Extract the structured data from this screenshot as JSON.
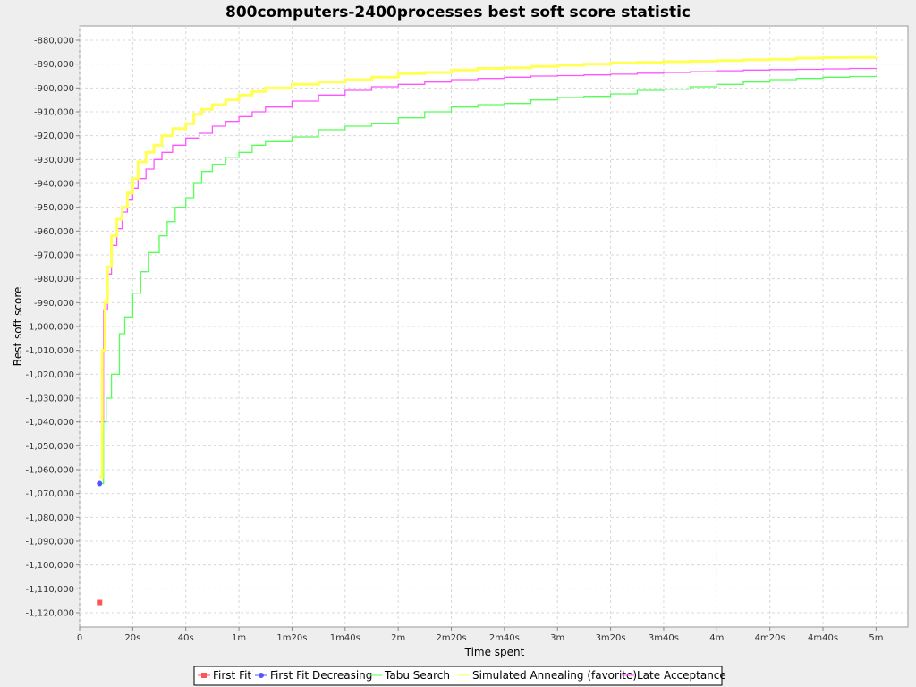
{
  "chart_data": {
    "type": "line",
    "title": "800computers-2400processes best soft score statistic",
    "xlabel": "Time spent",
    "ylabel": "Best soft score",
    "xlim": [
      0,
      312
    ],
    "ylim": [
      -1126000,
      -874000
    ],
    "x_ticks": [
      {
        "value": 0,
        "label": "0"
      },
      {
        "value": 20,
        "label": "20s"
      },
      {
        "value": 40,
        "label": "40s"
      },
      {
        "value": 60,
        "label": "1m"
      },
      {
        "value": 80,
        "label": "1m20s"
      },
      {
        "value": 100,
        "label": "1m40s"
      },
      {
        "value": 120,
        "label": "2m"
      },
      {
        "value": 140,
        "label": "2m20s"
      },
      {
        "value": 160,
        "label": "2m40s"
      },
      {
        "value": 180,
        "label": "3m"
      },
      {
        "value": 200,
        "label": "3m20s"
      },
      {
        "value": 220,
        "label": "3m40s"
      },
      {
        "value": 240,
        "label": "4m"
      },
      {
        "value": 260,
        "label": "4m20s"
      },
      {
        "value": 280,
        "label": "4m40s"
      },
      {
        "value": 300,
        "label": "5m"
      }
    ],
    "y_ticks": [
      {
        "value": -880000,
        "label": "-880,000"
      },
      {
        "value": -890000,
        "label": "-890,000"
      },
      {
        "value": -900000,
        "label": "-900,000"
      },
      {
        "value": -910000,
        "label": "-910,000"
      },
      {
        "value": -920000,
        "label": "-920,000"
      },
      {
        "value": -930000,
        "label": "-930,000"
      },
      {
        "value": -940000,
        "label": "-940,000"
      },
      {
        "value": -950000,
        "label": "-950,000"
      },
      {
        "value": -960000,
        "label": "-960,000"
      },
      {
        "value": -970000,
        "label": "-970,000"
      },
      {
        "value": -980000,
        "label": "-980,000"
      },
      {
        "value": -990000,
        "label": "-990,000"
      },
      {
        "value": -1000000,
        "label": "-1,000,000"
      },
      {
        "value": -1010000,
        "label": "-1,010,000"
      },
      {
        "value": -1020000,
        "label": "-1,020,000"
      },
      {
        "value": -1030000,
        "label": "-1,030,000"
      },
      {
        "value": -1040000,
        "label": "-1,040,000"
      },
      {
        "value": -1050000,
        "label": "-1,050,000"
      },
      {
        "value": -1060000,
        "label": "-1,060,000"
      },
      {
        "value": -1070000,
        "label": "-1,070,000"
      },
      {
        "value": -1080000,
        "label": "-1,080,000"
      },
      {
        "value": -1090000,
        "label": "-1,090,000"
      },
      {
        "value": -1100000,
        "label": "-1,100,000"
      },
      {
        "value": -1110000,
        "label": "-1,110,000"
      },
      {
        "value": -1120000,
        "label": "-1,120,000"
      }
    ],
    "grid": true,
    "legend_position": "bottom",
    "series": [
      {
        "name": "First Fit",
        "color": "#ff5555",
        "marker": "square",
        "x": [
          7.5
        ],
        "y": [
          -1115700
        ]
      },
      {
        "name": "First Fit Decreasing",
        "color": "#5555ff",
        "marker": "circle",
        "x": [
          7.5
        ],
        "y": [
          -1065800
        ]
      },
      {
        "name": "Tabu Search",
        "color": "#55ff55",
        "marker": "none",
        "x": [
          7.5,
          9,
          10,
          12,
          15,
          17,
          20,
          23,
          26,
          30,
          33,
          36,
          40,
          43,
          46,
          50,
          55,
          60,
          65,
          70,
          80,
          90,
          100,
          110,
          120,
          130,
          140,
          150,
          160,
          170,
          180,
          190,
          200,
          210,
          220,
          230,
          240,
          250,
          260,
          270,
          280,
          290,
          300
        ],
        "y": [
          -1065800,
          -1040000,
          -1030000,
          -1020000,
          -1003000,
          -996000,
          -986000,
          -977000,
          -969000,
          -962000,
          -956000,
          -950000,
          -946000,
          -940000,
          -935000,
          -932000,
          -929000,
          -927000,
          -924000,
          -922500,
          -920500,
          -917500,
          -916000,
          -915000,
          -912500,
          -910000,
          -908000,
          -907000,
          -906500,
          -905000,
          -904000,
          -903500,
          -902500,
          -901000,
          -900500,
          -899500,
          -898500,
          -897500,
          -896500,
          -896000,
          -895500,
          -895200,
          -895000
        ]
      },
      {
        "name": "Simulated Annealing (favorite)",
        "color": "#ffff55",
        "marker": "none",
        "x": [
          7.5,
          8.5,
          9.5,
          10.5,
          12,
          14,
          16,
          18,
          20,
          22,
          25,
          28,
          31,
          35,
          40,
          43,
          46,
          50,
          55,
          60,
          65,
          70,
          80,
          90,
          100,
          110,
          120,
          130,
          140,
          150,
          160,
          170,
          180,
          190,
          200,
          210,
          220,
          230,
          240,
          250,
          260,
          270,
          280,
          290,
          300
        ],
        "y": [
          -1063000,
          -1010000,
          -990000,
          -975000,
          -962000,
          -955000,
          -950000,
          -944000,
          -938000,
          -931000,
          -927000,
          -924000,
          -920000,
          -917000,
          -915000,
          -911000,
          -909000,
          -907000,
          -905000,
          -903000,
          -901500,
          -900000,
          -898500,
          -897500,
          -896500,
          -895500,
          -894000,
          -893500,
          -892500,
          -891800,
          -891500,
          -891000,
          -890500,
          -890000,
          -889500,
          -889300,
          -889000,
          -888800,
          -888500,
          -888200,
          -888000,
          -887500,
          -887300,
          -887200,
          -887100
        ]
      },
      {
        "name": "Late Acceptance",
        "color": "#ff55ff",
        "marker": "none",
        "x": [
          7.5,
          9,
          10.5,
          12,
          14,
          16,
          18,
          20,
          22,
          25,
          28,
          31,
          35,
          40,
          45,
          50,
          55,
          60,
          65,
          70,
          80,
          90,
          100,
          110,
          120,
          130,
          140,
          150,
          160,
          170,
          180,
          190,
          200,
          210,
          220,
          230,
          240,
          250,
          260,
          270,
          280,
          290,
          300
        ],
        "y": [
          -1040000,
          -993000,
          -978000,
          -966000,
          -959000,
          -952000,
          -947000,
          -942000,
          -938000,
          -934000,
          -930000,
          -927000,
          -924000,
          -921000,
          -919000,
          -916000,
          -914000,
          -912000,
          -910000,
          -908000,
          -905500,
          -903000,
          -901000,
          -899500,
          -898500,
          -897500,
          -896500,
          -896000,
          -895500,
          -895000,
          -894800,
          -894500,
          -894200,
          -893800,
          -893500,
          -893200,
          -892800,
          -892500,
          -892300,
          -892200,
          -892000,
          -891800,
          -891600
        ]
      }
    ]
  }
}
